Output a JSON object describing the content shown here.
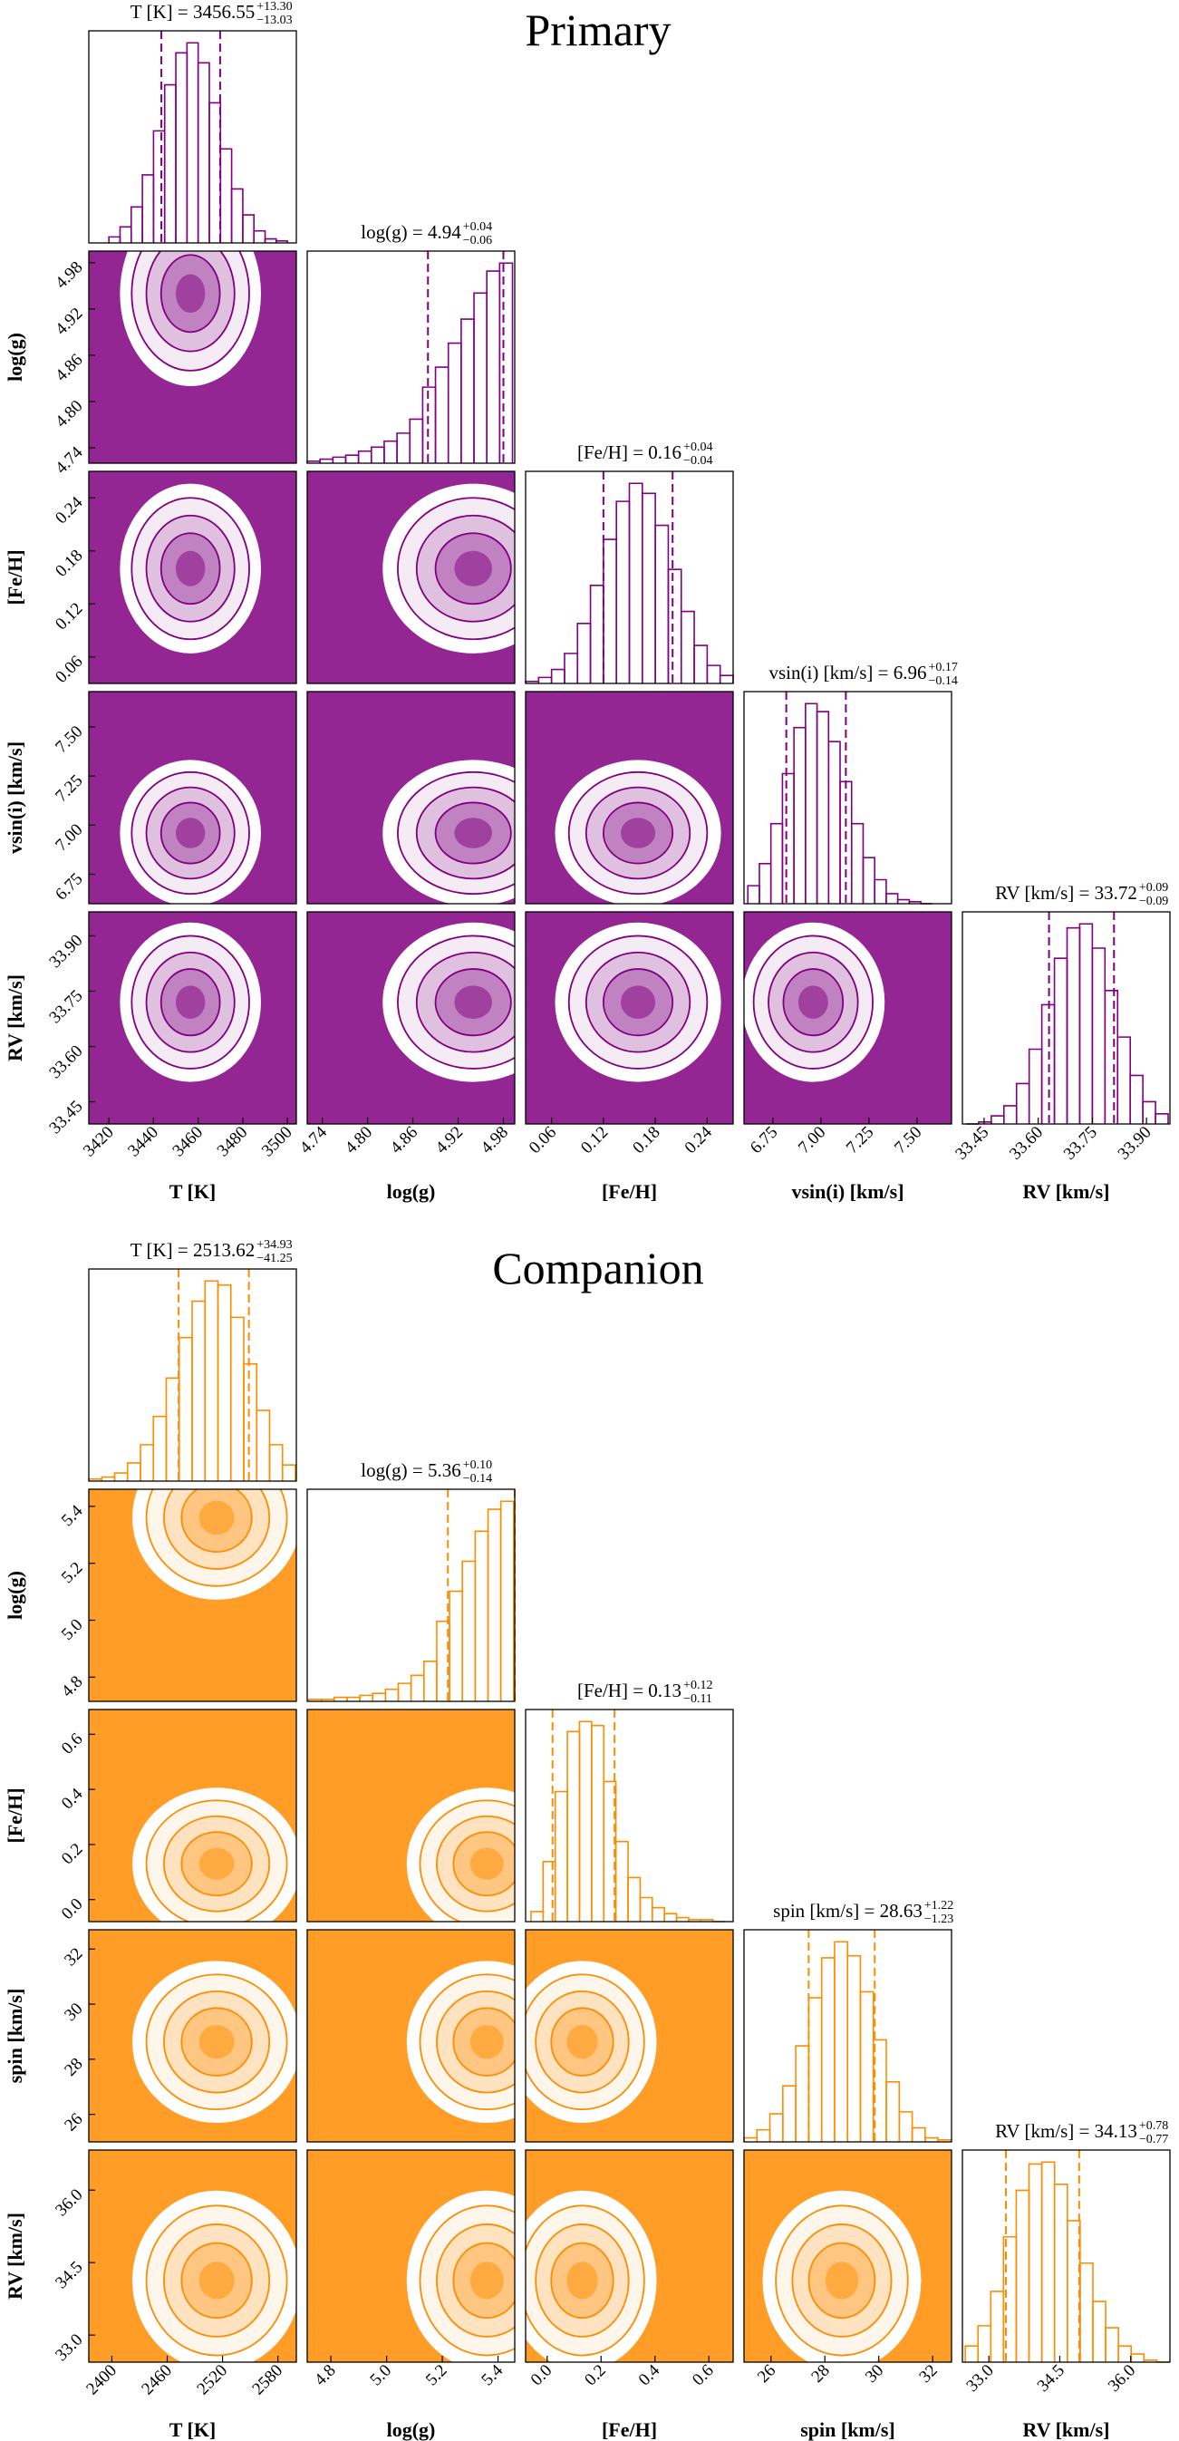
{
  "chart_data": [
    {
      "type": "corner",
      "title": "Primary",
      "color": "#800080",
      "params": [
        {
          "name": "T [K]",
          "median": {
            "value": 3456.55,
            "label": "T [K] = 3456.55"
          },
          "err_plus": {
            "value": 13.3,
            "label": "+13.30"
          },
          "err_minus": {
            "value": 13.03,
            "label": "−13.03"
          },
          "lim": [
            3411,
            3504
          ],
          "ticks": [
            3420,
            3440,
            3460,
            3480,
            3500
          ],
          "bins": [
            3420,
            3425,
            3430,
            3435,
            3440,
            3445,
            3450,
            3455,
            3460,
            3465,
            3470,
            3475,
            3480,
            3485,
            3490,
            3495,
            3500
          ],
          "counts": [
            3,
            8,
            18,
            34,
            56,
            79,
            95,
            100,
            90,
            70,
            47,
            27,
            14,
            6,
            2,
            1
          ]
        },
        {
          "name": "log(g)",
          "median": {
            "value": 4.94,
            "label": "log(g) = 4.94"
          },
          "err_plus": {
            "value": 0.04,
            "label": "+0.04"
          },
          "err_minus": {
            "value": 0.06,
            "label": "−0.06"
          },
          "lim": [
            4.72,
            4.995
          ],
          "ticks": [
            4.74,
            {
              "value": 4.8,
              "label": "4.80"
            },
            4.86,
            4.92,
            4.98
          ],
          "bins": [
            4.72,
            4.737,
            4.754,
            4.771,
            4.788,
            4.805,
            4.822,
            4.839,
            4.856,
            4.873,
            4.89,
            4.907,
            4.924,
            4.941,
            4.958,
            4.975,
            4.992
          ],
          "counts": [
            1,
            2,
            3,
            4,
            6,
            8,
            11,
            15,
            22,
            38,
            48,
            60,
            72,
            85,
            96,
            100
          ]
        },
        {
          "name": "[Fe/H]",
          "median": {
            "value": 0.16,
            "label": "[Fe/H] = 0.16"
          },
          "err_plus": {
            "value": 0.04,
            "label": "+0.04"
          },
          "err_minus": {
            "value": 0.04,
            "label": "−0.04"
          },
          "lim": [
            0.03,
            0.27
          ],
          "ticks": [
            0.06,
            0.12,
            0.18,
            0.24
          ],
          "bins": [
            0.03,
            0.045,
            0.06,
            0.075,
            0.09,
            0.105,
            0.12,
            0.135,
            0.15,
            0.165,
            0.18,
            0.195,
            0.21,
            0.225,
            0.24,
            0.255,
            0.27
          ],
          "counts": [
            1,
            3,
            7,
            15,
            30,
            49,
            72,
            91,
            100,
            95,
            79,
            57,
            36,
            19,
            9,
            4
          ]
        },
        {
          "name": "vsin(i) [km/s]",
          "median": {
            "value": 6.96,
            "label": "vsin(i) [km/s] = 6.96"
          },
          "err_plus": {
            "value": 0.17,
            "label": "+0.17"
          },
          "err_minus": {
            "value": 0.14,
            "label": "−0.14"
          },
          "lim": [
            6.6,
            7.68
          ],
          "ticks": [
            6.75,
            {
              "value": 7,
              "label": "7.00"
            },
            7.25,
            {
              "value": 7.5,
              "label": "7.50"
            }
          ],
          "bins": [
            6.62,
            6.68,
            6.74,
            6.8,
            6.86,
            6.92,
            6.98,
            7.04,
            7.1,
            7.16,
            7.22,
            7.28,
            7.34,
            7.4,
            7.46,
            7.52,
            7.58
          ],
          "counts": [
            9,
            20,
            40,
            65,
            88,
            100,
            96,
            81,
            61,
            40,
            23,
            12,
            5,
            2,
            1,
            0
          ]
        },
        {
          "name": "RV [km/s]",
          "median": {
            "value": 33.72,
            "label": "RV [km/s] = 33.72"
          },
          "err_plus": {
            "value": 0.09,
            "label": "+0.09"
          },
          "err_minus": {
            "value": 0.09,
            "label": "−0.09"
          },
          "lim": [
            33.39,
            33.965
          ],
          "ticks": [
            33.45,
            {
              "value": 33.6,
              "label": "33.60"
            },
            33.75,
            {
              "value": 33.9,
              "label": "33.90"
            }
          ],
          "bins": [
            33.4,
            33.435,
            33.47,
            33.505,
            33.54,
            33.575,
            33.61,
            33.645,
            33.68,
            33.715,
            33.75,
            33.785,
            33.82,
            33.855,
            33.89,
            33.925,
            33.96
          ],
          "counts": [
            0,
            1,
            4,
            9,
            20,
            37,
            59,
            82,
            97,
            99,
            87,
            66,
            43,
            24,
            11,
            5
          ]
        }
      ]
    },
    {
      "type": "corner",
      "title": "Companion",
      "color": "#ff8c00",
      "params": [
        {
          "name": "T [K]",
          "median": {
            "value": 2513.62,
            "label": "T [K] = 2513.62"
          },
          "err_plus": {
            "value": 34.93,
            "label": "+34.93"
          },
          "err_minus": {
            "value": 41.25,
            "label": "−41.25"
          },
          "lim": [
            2375,
            2600
          ],
          "ticks": [
            2400,
            2460,
            2520,
            2580
          ],
          "bins": [
            2375,
            2389,
            2403,
            2417,
            2431,
            2445,
            2459,
            2473,
            2487,
            2501,
            2515,
            2529,
            2543,
            2557,
            2571,
            2585,
            2599
          ],
          "counts": [
            1,
            2,
            4,
            9,
            18,
            32,
            51,
            71,
            89,
            99,
            97,
            81,
            58,
            35,
            18,
            8
          ]
        },
        {
          "name": "log(g)",
          "median": {
            "value": 5.36,
            "label": "log(g) = 5.36"
          },
          "err_plus": {
            "value": 0.1,
            "label": "+0.10"
          },
          "err_minus": {
            "value": 0.14,
            "label": "−0.14"
          },
          "lim": [
            4.715,
            5.46
          ],
          "ticks": [
            4.8,
            {
              "value": 5,
              "label": "5.0"
            },
            5.2,
            5.4
          ],
          "bins": [
            4.72,
            4.766,
            4.812,
            4.858,
            4.904,
            4.95,
            4.996,
            5.042,
            5.088,
            5.134,
            5.18,
            5.226,
            5.272,
            5.318,
            5.364,
            5.41,
            5.456
          ],
          "counts": [
            1,
            1,
            2,
            2,
            3,
            4,
            6,
            9,
            13,
            20,
            40,
            55,
            70,
            85,
            96,
            100
          ]
        },
        {
          "name": "[Fe/H]",
          "median": {
            "value": 0.13,
            "label": "[Fe/H] = 0.13"
          },
          "err_plus": {
            "value": 0.12,
            "label": "+0.12"
          },
          "err_minus": {
            "value": 0.11,
            "label": "−0.11"
          },
          "lim": [
            -0.08,
            0.69
          ],
          "ticks": [
            {
              "value": 0,
              "label": "0.0"
            },
            0.2,
            0.4,
            0.6
          ],
          "bins": [
            -0.06,
            -0.015,
            0.03,
            0.075,
            0.12,
            0.165,
            0.21,
            0.255,
            0.3,
            0.345,
            0.39,
            0.435,
            0.48,
            0.525,
            0.57,
            0.615,
            0.66
          ],
          "counts": [
            5,
            30,
            65,
            95,
            100,
            98,
            70,
            40,
            22,
            12,
            7,
            4,
            2,
            1,
            1,
            0
          ]
        },
        {
          "name": "spin [km/s]",
          "median": {
            "value": 28.63,
            "label": "spin [km/s] = 28.63"
          },
          "err_plus": {
            "value": 1.22,
            "label": "+1.22"
          },
          "err_minus": {
            "value": 1.23,
            "label": "−1.23"
          },
          "lim": [
            25,
            32.7
          ],
          "ticks": [
            26,
            28,
            30,
            32
          ],
          "bins": [
            25,
            25.48,
            25.96,
            26.44,
            26.92,
            27.4,
            27.88,
            28.36,
            28.84,
            29.32,
            29.8,
            30.28,
            30.76,
            31.24,
            31.72,
            32.2,
            32.68
          ],
          "counts": [
            2,
            6,
            14,
            28,
            48,
            72,
            92,
            100,
            93,
            75,
            51,
            30,
            15,
            7,
            2,
            1
          ]
        },
        {
          "name": "RV [km/s]",
          "median": {
            "value": 34.13,
            "label": "RV [km/s] = 34.13"
          },
          "err_plus": {
            "value": 0.78,
            "label": "+0.78"
          },
          "err_minus": {
            "value": 0.77,
            "label": "−0.77"
          },
          "lim": [
            32.44,
            36.83
          ],
          "ticks": [
            {
              "value": 33,
              "label": "33.0"
            },
            34.5,
            {
              "value": 36,
              "label": "36.0"
            }
          ],
          "bins": [
            32.5,
            32.77,
            33.04,
            33.31,
            33.58,
            33.85,
            34.12,
            34.39,
            34.66,
            34.93,
            35.2,
            35.47,
            35.74,
            36.01,
            36.28,
            36.55,
            36.82
          ],
          "counts": [
            8,
            18,
            35,
            62,
            85,
            98,
            99,
            88,
            70,
            49,
            30,
            17,
            8,
            4,
            1,
            0
          ]
        }
      ]
    }
  ]
}
